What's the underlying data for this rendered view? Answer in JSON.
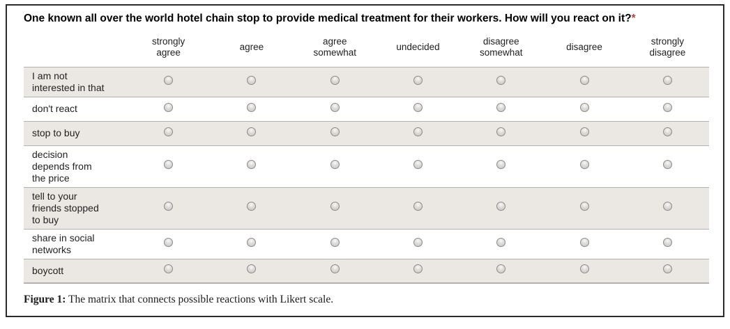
{
  "figure": {
    "question": "One known all over the world hotel chain stop to provide medical treatment for their workers. How will you react on it?",
    "required_marker": "*",
    "matrix": {
      "columns": [
        "strongly agree",
        "agree",
        "agree somewhat",
        "undecided",
        "disagree somewhat",
        "disagree",
        "strongly disagree"
      ],
      "rows": [
        {
          "label": "I am not interested in that",
          "selected": null
        },
        {
          "label": "don't react",
          "selected": null
        },
        {
          "label": "stop to buy",
          "selected": null
        },
        {
          "label": "decision depends from the price",
          "selected": null
        },
        {
          "label": "tell to your friends stopped to buy",
          "selected": null
        },
        {
          "label": "share in social networks",
          "selected": null
        },
        {
          "label": "boycott",
          "selected": null
        }
      ]
    },
    "caption": {
      "label": "Figure 1:",
      "text": " The matrix that connects possible reactions with Likert scale."
    },
    "colors": {
      "row_shade": "#ebe8e3",
      "separator": "#b2b4ac",
      "required_asterisk": "#b3453e",
      "box_border": "#2a2a2a"
    }
  }
}
